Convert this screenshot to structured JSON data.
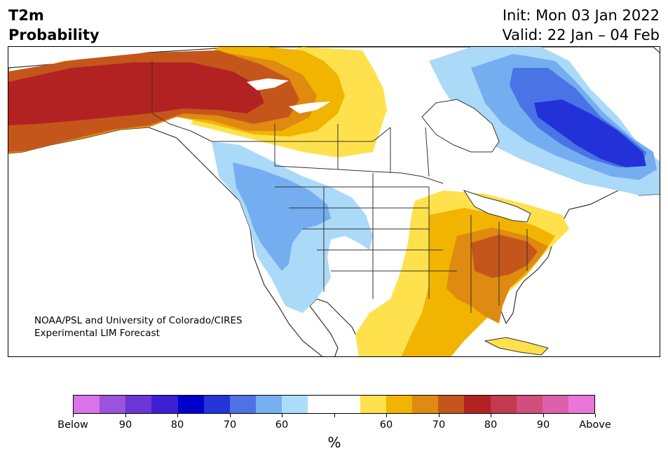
{
  "header": {
    "title_line1": "T2m",
    "title_line2": "Probability",
    "init": "Init: Mon 03 Jan 2022",
    "valid": "Valid: 22 Jan – 04 Feb"
  },
  "map": {
    "credit_line1": "NOAA/PSL and University of Colorado/CIRES",
    "credit_line2": "Experimental LIM Forecast",
    "region": "North America",
    "colors": {
      "below_60": "#abd9f8",
      "below_70": "#74aef0",
      "below_80": "#4a73e6",
      "below_90": "#2232d8",
      "above_60": "#ffe14d",
      "above_70": "#f1b400",
      "above_80": "#df8a10",
      "above_90": "#c5561b",
      "above_high": "#b22222",
      "neutral": "#ffffff",
      "borders": "#333333"
    }
  },
  "colorbar": {
    "colors": [
      "#d873e8",
      "#9b52dc",
      "#6c35d6",
      "#3d1ed2",
      "#0000cc",
      "#2434d8",
      "#4c72e6",
      "#76aff0",
      "#acdcfb",
      "#ffffff",
      "#ffffff",
      "#ffe14d",
      "#f1b400",
      "#df8a10",
      "#c5561b",
      "#b22222",
      "#c23a4e",
      "#d24e7c",
      "#dd60ad",
      "#e877d9"
    ],
    "labels": [
      "Below",
      "90",
      "80",
      "70",
      "60",
      "",
      "60",
      "70",
      "80",
      "90",
      "Above"
    ],
    "unit": "%"
  }
}
